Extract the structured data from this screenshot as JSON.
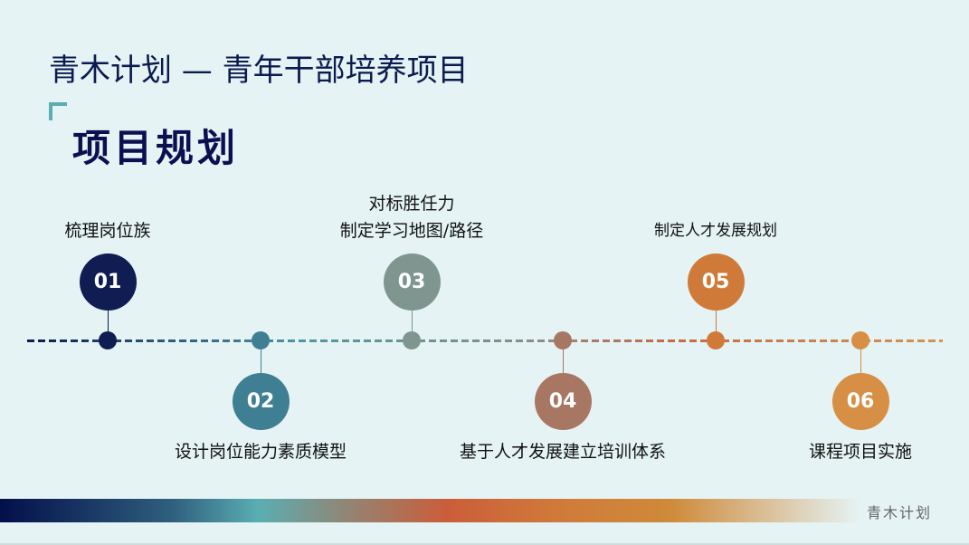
{
  "header": {
    "title": "青木计划 — 青年干部培养项目",
    "subtitle": "项目规划"
  },
  "timeline": {
    "steps": [
      {
        "num": "01",
        "label": "梳理岗位族",
        "position": "top",
        "color": "#0f1d52"
      },
      {
        "num": "02",
        "label": "设计岗位能力素质模型",
        "position": "bottom",
        "color": "#3f7f93"
      },
      {
        "num": "03",
        "label": "对标胜任力\n制定学习地图/路径",
        "position": "top",
        "color": "#7f958f"
      },
      {
        "num": "04",
        "label": "基于人才发展建立培训体系",
        "position": "bottom",
        "color": "#a87763"
      },
      {
        "num": "05",
        "label": "制定人才发展规划",
        "position": "top",
        "color": "#d07a3a"
      },
      {
        "num": "06",
        "label": "课程项目实施",
        "position": "bottom",
        "color": "#d68f45"
      }
    ]
  },
  "footer": {
    "brand": "青木计划"
  }
}
